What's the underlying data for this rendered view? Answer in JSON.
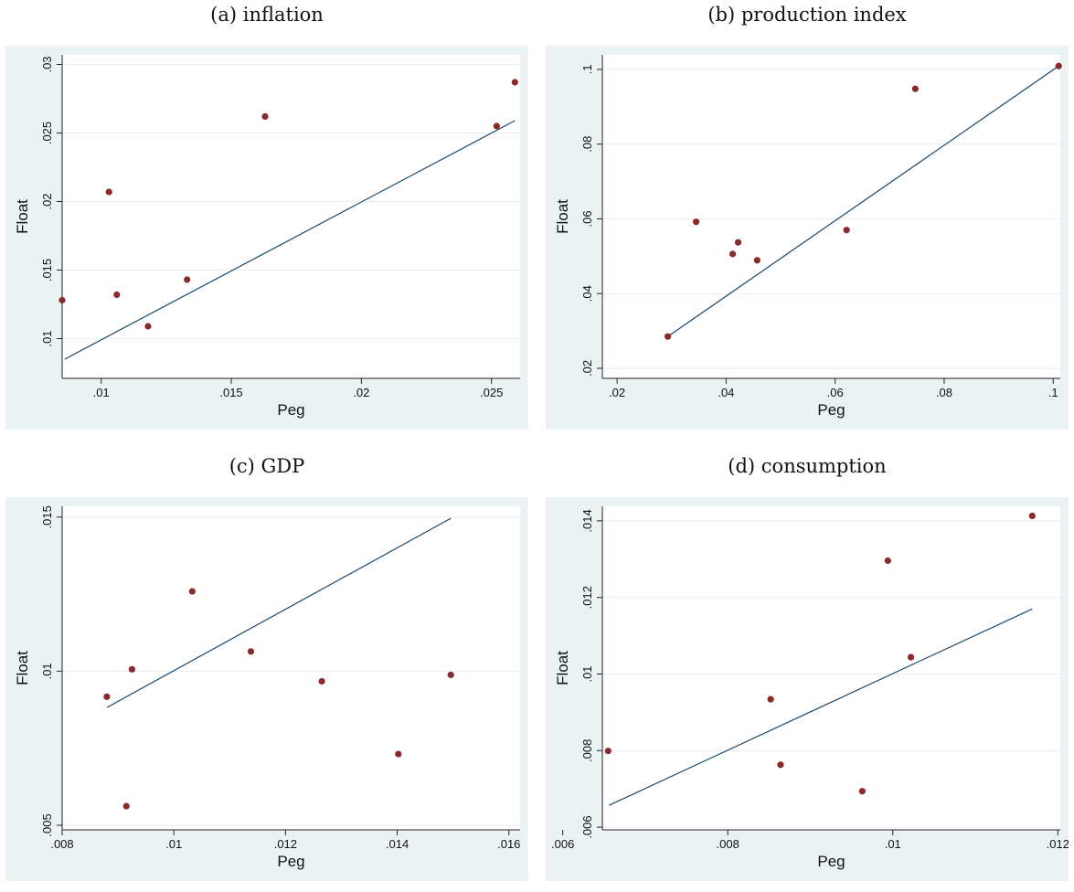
{
  "colors": {
    "background": "#eaf2f3",
    "plot_area": "#ffffff",
    "grid": "#e7eef0",
    "axis": "#222222",
    "points": "#8b2a2a",
    "fit_line": "#1a476f"
  },
  "chart_data": [
    {
      "type": "scatter",
      "caption": "(a) inflation",
      "xlabel": "Peg",
      "ylabel": "Float",
      "xlim": [
        0.0085,
        0.0261
      ],
      "ylim": [
        0.0071,
        0.0307
      ],
      "xticks": [
        0.01,
        0.015,
        0.02,
        0.025
      ],
      "xtick_labels": [
        ".01",
        ".015",
        ".02",
        ".025"
      ],
      "yticks": [
        0.01,
        0.015,
        0.02,
        0.025,
        0.03
      ],
      "ytick_labels": [
        ".01",
        ".015",
        ".02",
        ".025",
        ".03"
      ],
      "grid": true,
      "points": [
        {
          "x": 0.0085,
          "y": 0.0128
        },
        {
          "x": 0.0103,
          "y": 0.0207
        },
        {
          "x": 0.0106,
          "y": 0.0132
        },
        {
          "x": 0.0118,
          "y": 0.0109
        },
        {
          "x": 0.0133,
          "y": 0.0143
        },
        {
          "x": 0.0163,
          "y": 0.0262
        },
        {
          "x": 0.0252,
          "y": 0.0255
        },
        {
          "x": 0.0259,
          "y": 0.0287
        }
      ],
      "fit_line": [
        {
          "x": 0.0086,
          "y": 0.0085
        },
        {
          "x": 0.0259,
          "y": 0.0259
        }
      ]
    },
    {
      "type": "scatter",
      "caption": "(b) production index",
      "xlabel": "Peg",
      "ylabel": "Float",
      "xlim": [
        0.0173,
        0.1013
      ],
      "ylim": [
        0.0173,
        0.1039
      ],
      "xticks": [
        0.02,
        0.04,
        0.06,
        0.08,
        0.1
      ],
      "xtick_labels": [
        ".02",
        ".04",
        ".06",
        ".08",
        ".1"
      ],
      "yticks": [
        0.02,
        0.04,
        0.06,
        0.08,
        0.1
      ],
      "ytick_labels": [
        ".02",
        ".04",
        ".06",
        ".08",
        ".1"
      ],
      "grid": true,
      "points": [
        {
          "x": 0.0293,
          "y": 0.0285
        },
        {
          "x": 0.0345,
          "y": 0.0592
        },
        {
          "x": 0.0412,
          "y": 0.0506
        },
        {
          "x": 0.0422,
          "y": 0.0537
        },
        {
          "x": 0.0457,
          "y": 0.0489
        },
        {
          "x": 0.0621,
          "y": 0.057
        },
        {
          "x": 0.0747,
          "y": 0.0948
        },
        {
          "x": 0.101,
          "y": 0.1009
        }
      ],
      "fit_line": [
        {
          "x": 0.0293,
          "y": 0.0285
        },
        {
          "x": 0.101,
          "y": 0.1009
        }
      ]
    },
    {
      "type": "scatter",
      "caption": "(c) GDP",
      "xlabel": "Peg",
      "ylabel": "Float",
      "xlim": [
        0.008,
        0.0162
      ],
      "ylim": [
        0.00485,
        0.01535
      ],
      "xticks": [
        0.008,
        0.01,
        0.012,
        0.014,
        0.016
      ],
      "xtick_labels": [
        ".008",
        ".01",
        ".012",
        ".014",
        ".016"
      ],
      "yticks": [
        0.005,
        0.01,
        0.015
      ],
      "ytick_labels": [
        ".005",
        ".01",
        ".015"
      ],
      "grid": true,
      "points": [
        {
          "x": 0.0088,
          "y": 0.00917
        },
        {
          "x": 0.00915,
          "y": 0.00562
        },
        {
          "x": 0.00925,
          "y": 0.01006
        },
        {
          "x": 0.01033,
          "y": 0.01259
        },
        {
          "x": 0.01138,
          "y": 0.01064
        },
        {
          "x": 0.01265,
          "y": 0.00967
        },
        {
          "x": 0.01402,
          "y": 0.00731
        },
        {
          "x": 0.01496,
          "y": 0.00988
        }
      ],
      "fit_line": [
        {
          "x": 0.0088,
          "y": 0.00882
        },
        {
          "x": 0.01496,
          "y": 0.01496
        }
      ]
    },
    {
      "type": "scatter",
      "caption": "(d) consumption",
      "xlabel": "Peg",
      "ylabel": "Float",
      "xlim": [
        0.00648,
        0.01203
      ],
      "ylim": [
        0.00593,
        0.01438
      ],
      "xticks": [
        0.006,
        0.008,
        0.01,
        0.012
      ],
      "xtick_labels": [
        ".006",
        ".008",
        ".01",
        ".012"
      ],
      "yticks": [
        0.006,
        0.008,
        0.01,
        0.012,
        0.014
      ],
      "ytick_labels": [
        ".006",
        ".008",
        ".01",
        ".012",
        ".014"
      ],
      "grid": true,
      "points": [
        {
          "x": 0.00655,
          "y": 0.00799
        },
        {
          "x": 0.00852,
          "y": 0.00934
        },
        {
          "x": 0.00864,
          "y": 0.00763
        },
        {
          "x": 0.00963,
          "y": 0.00694
        },
        {
          "x": 0.00994,
          "y": 0.01296
        },
        {
          "x": 0.01022,
          "y": 0.01044
        },
        {
          "x": 0.01169,
          "y": 0.01413
        }
      ],
      "fit_line": [
        {
          "x": 0.00656,
          "y": 0.00657
        },
        {
          "x": 0.01169,
          "y": 0.0117
        }
      ]
    }
  ]
}
